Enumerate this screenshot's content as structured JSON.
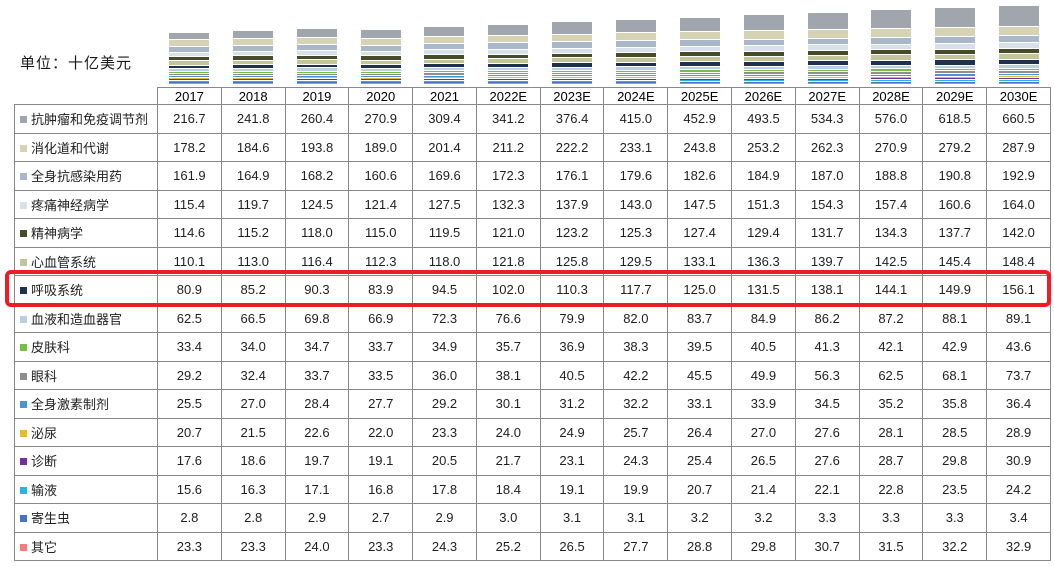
{
  "unit_label": "单位：十亿美元",
  "highlight": {
    "row": "呼吸系统",
    "color": "#ee1c25"
  },
  "chart_data": {
    "type": "bar",
    "stacked": true,
    "title": "",
    "unit": "十亿美元",
    "legend_position": "table-left",
    "grid": false,
    "categories": [
      "2017",
      "2018",
      "2019",
      "2020",
      "2021",
      "2022E",
      "2023E",
      "2024E",
      "2025E",
      "2026E",
      "2027E",
      "2028E",
      "2029E",
      "2030E"
    ],
    "series": [
      {
        "name": "抗肿瘤和免疫调节剂",
        "color": "#a1a5ad",
        "values": [
          216.7,
          241.8,
          260.4,
          270.9,
          309.4,
          341.2,
          376.4,
          415.0,
          452.9,
          493.5,
          534.3,
          576.0,
          618.5,
          660.5
        ]
      },
      {
        "name": "消化道和代谢",
        "color": "#d6d3b4",
        "values": [
          178.2,
          184.6,
          193.8,
          189.0,
          201.4,
          211.2,
          222.2,
          233.1,
          243.8,
          253.2,
          262.3,
          270.9,
          279.2,
          287.9
        ]
      },
      {
        "name": "全身抗感染用药",
        "color": "#a8b8c8",
        "values": [
          161.9,
          164.9,
          168.2,
          160.6,
          169.6,
          172.3,
          176.1,
          179.6,
          182.6,
          184.9,
          187.0,
          188.8,
          190.8,
          192.9
        ]
      },
      {
        "name": "疼痛神经病学",
        "color": "#d8e0e9",
        "values": [
          115.4,
          119.7,
          124.5,
          121.4,
          127.5,
          132.3,
          137.9,
          143.0,
          147.5,
          151.3,
          154.3,
          157.4,
          160.6,
          164.0
        ]
      },
      {
        "name": "精神病学",
        "color": "#474c28",
        "values": [
          114.6,
          115.2,
          118.0,
          115.0,
          119.5,
          121.0,
          123.2,
          125.3,
          127.4,
          129.4,
          131.7,
          134.3,
          137.7,
          142.0
        ]
      },
      {
        "name": "心血管系统",
        "color": "#c2c49a",
        "values": [
          110.1,
          113.0,
          116.4,
          112.3,
          118.0,
          121.8,
          125.8,
          129.5,
          133.1,
          136.3,
          139.7,
          142.5,
          145.4,
          148.4
        ]
      },
      {
        "name": "呼吸系统",
        "color": "#20314b",
        "values": [
          80.9,
          85.2,
          90.3,
          83.9,
          94.5,
          102.0,
          110.3,
          117.7,
          125.0,
          131.5,
          138.1,
          144.1,
          149.9,
          156.1
        ]
      },
      {
        "name": "血液和造血器官",
        "color": "#b9cfe2",
        "values": [
          62.5,
          66.5,
          69.8,
          66.9,
          72.3,
          76.6,
          79.9,
          82.0,
          83.7,
          84.9,
          86.2,
          87.2,
          88.1,
          89.1
        ]
      },
      {
        "name": "皮肤科",
        "color": "#74bf44",
        "values": [
          33.4,
          34.0,
          34.7,
          33.7,
          34.9,
          35.7,
          36.9,
          38.3,
          39.5,
          40.5,
          41.3,
          42.1,
          42.9,
          43.6
        ]
      },
      {
        "name": "眼科",
        "color": "#8e8e8e",
        "values": [
          29.2,
          32.4,
          33.7,
          33.5,
          36.0,
          38.1,
          40.5,
          42.2,
          45.5,
          49.9,
          56.3,
          62.5,
          68.1,
          73.7
        ]
      },
      {
        "name": "全身激素制剂",
        "color": "#4a96d2",
        "values": [
          25.5,
          27.0,
          28.4,
          27.7,
          29.2,
          30.1,
          31.2,
          32.2,
          33.1,
          33.9,
          34.5,
          35.2,
          35.8,
          36.4
        ]
      },
      {
        "name": "泌尿",
        "color": "#e9b935",
        "values": [
          20.7,
          21.5,
          22.6,
          22.0,
          23.3,
          24.0,
          24.9,
          25.7,
          26.4,
          27.0,
          27.6,
          28.1,
          28.5,
          28.9
        ]
      },
      {
        "name": "诊断",
        "color": "#7030a0",
        "values": [
          17.6,
          18.6,
          19.7,
          19.1,
          20.5,
          21.7,
          23.1,
          24.3,
          25.4,
          26.5,
          27.6,
          28.7,
          29.8,
          30.9
        ]
      },
      {
        "name": "输液",
        "color": "#2bb0e8",
        "values": [
          15.6,
          16.3,
          17.1,
          16.8,
          17.8,
          18.4,
          19.1,
          19.9,
          20.7,
          21.4,
          22.1,
          22.8,
          23.5,
          24.2
        ]
      },
      {
        "name": "寄生虫",
        "color": "#4472c4",
        "values": [
          2.8,
          2.8,
          2.9,
          2.7,
          2.9,
          3.0,
          3.1,
          3.1,
          3.2,
          3.2,
          3.3,
          3.3,
          3.3,
          3.4
        ]
      },
      {
        "name": "其它",
        "color": "#f47c7c",
        "values": [
          23.3,
          23.3,
          24.0,
          23.3,
          24.3,
          25.2,
          26.5,
          27.7,
          28.8,
          29.8,
          30.7,
          31.5,
          32.2,
          32.9
        ]
      }
    ]
  }
}
